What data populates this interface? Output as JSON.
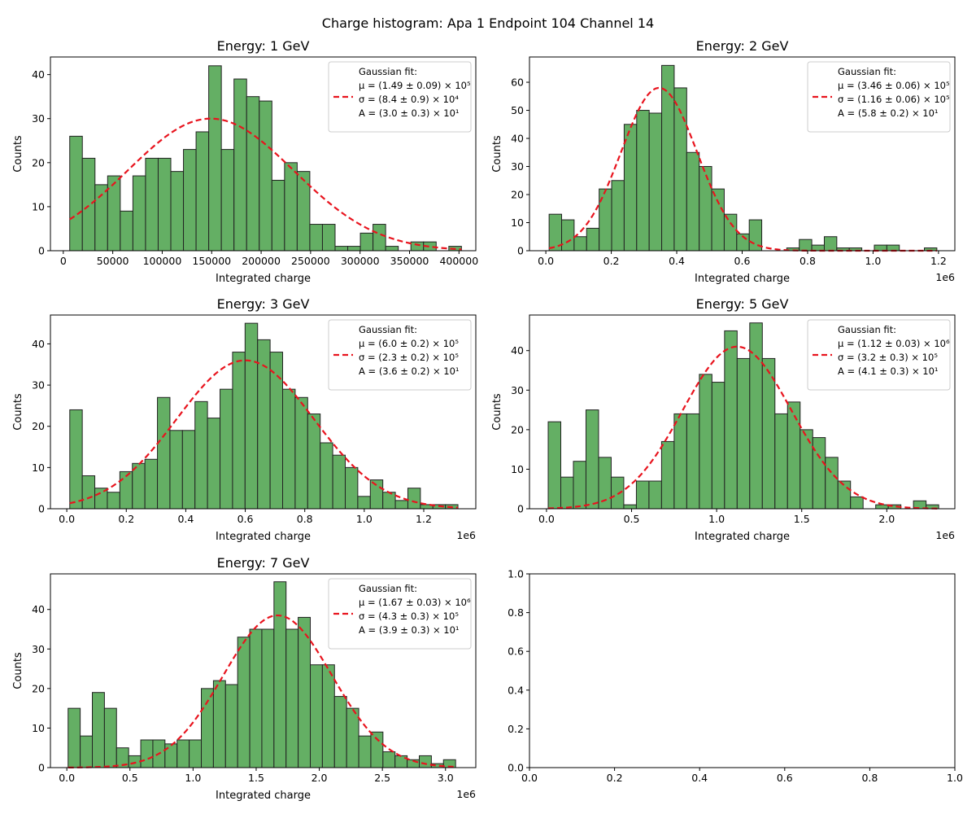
{
  "figure": {
    "suptitle": "Charge histogram: Apa 1 Endpoint 104 Channel 14"
  },
  "colors": {
    "bar_fill": "#64af64",
    "bar_edge": "#222222",
    "fit_line": "#e8141e"
  },
  "chart_data": [
    {
      "type": "bar",
      "title": "Energy: 1 GeV",
      "xlabel": "Integrated charge",
      "ylabel": "Counts",
      "x_offset_label": "",
      "xlim": [
        -13000,
        417000
      ],
      "ylim": [
        0,
        44
      ],
      "xticks": [
        0,
        50000,
        100000,
        150000,
        200000,
        250000,
        300000,
        350000,
        400000
      ],
      "xtick_labels": [
        "0",
        "50000",
        "100000",
        "150000",
        "200000",
        "250000",
        "300000",
        "350000",
        "400000"
      ],
      "yticks": [
        0,
        10,
        20,
        30,
        40
      ],
      "ytick_labels": [
        "0",
        "10",
        "20",
        "30",
        "40"
      ],
      "bin_range": [
        6500,
        402500
      ],
      "counts": [
        26,
        21,
        15,
        17,
        9,
        17,
        21,
        21,
        18,
        23,
        27,
        42,
        23,
        39,
        35,
        34,
        16,
        20,
        18,
        6,
        6,
        1,
        1,
        4,
        6,
        1,
        0,
        2,
        2,
        0,
        1
      ],
      "fit": {
        "mu": 149000,
        "sigma": 84000,
        "A": 30
      },
      "legend": {
        "position": "upper-right",
        "title": "Gaussian fit:",
        "lines": [
          "μ = (1.49 ± 0.09) × 10⁵",
          "σ = (8.4 ± 0.9) × 10⁴",
          "A = (3.0 ± 0.3) × 10¹"
        ]
      }
    },
    {
      "type": "bar",
      "title": "Energy: 2 GeV",
      "xlabel": "Integrated charge",
      "ylabel": "Counts",
      "x_offset_label": "1e6",
      "xlim": [
        -0.05,
        1.25
      ],
      "ylim": [
        0,
        69
      ],
      "xticks": [
        0,
        0.2,
        0.4,
        0.6,
        0.8,
        1.0,
        1.2
      ],
      "xtick_labels": [
        "0.0",
        "0.2",
        "0.4",
        "0.6",
        "0.8",
        "1.0",
        "1.2"
      ],
      "yticks": [
        0,
        10,
        20,
        30,
        40,
        50,
        60
      ],
      "ytick_labels": [
        "0",
        "10",
        "20",
        "30",
        "40",
        "50",
        "60"
      ],
      "bin_range": [
        0.01,
        1.195
      ],
      "counts": [
        13,
        11,
        5,
        8,
        22,
        25,
        45,
        50,
        49,
        66,
        58,
        35,
        30,
        22,
        13,
        6,
        11,
        0,
        0,
        1,
        4,
        2,
        5,
        1,
        1,
        0,
        2,
        2,
        0,
        0,
        1
      ],
      "fit": {
        "mu": 0.346,
        "sigma": 0.116,
        "A": 58
      },
      "legend": {
        "position": "upper-right",
        "title": "Gaussian fit:",
        "lines": [
          "μ = (3.46 ± 0.06) × 10⁵",
          "σ = (1.16 ± 0.06) × 10⁵",
          "A = (5.8 ± 0.2) × 10¹"
        ]
      }
    },
    {
      "type": "bar",
      "title": "Energy: 3 GeV",
      "xlabel": "Integrated charge",
      "ylabel": "Counts",
      "x_offset_label": "1e6",
      "xlim": [
        -0.055,
        1.375
      ],
      "ylim": [
        0,
        47
      ],
      "xticks": [
        0,
        0.2,
        0.4,
        0.6,
        0.8,
        1.0,
        1.2
      ],
      "xtick_labels": [
        "0.0",
        "0.2",
        "0.4",
        "0.6",
        "0.8",
        "1.0",
        "1.2"
      ],
      "yticks": [
        0,
        10,
        20,
        30,
        40
      ],
      "ytick_labels": [
        "0",
        "10",
        "20",
        "30",
        "40"
      ],
      "bin_range": [
        0.01,
        1.315
      ],
      "counts": [
        24,
        8,
        5,
        4,
        9,
        11,
        12,
        27,
        19,
        19,
        26,
        22,
        29,
        38,
        45,
        41,
        38,
        29,
        27,
        23,
        16,
        13,
        10,
        3,
        7,
        4,
        2,
        5,
        1,
        1,
        1
      ],
      "fit": {
        "mu": 0.6,
        "sigma": 0.23,
        "A": 36
      },
      "legend": {
        "position": "upper-right",
        "title": "Gaussian fit:",
        "lines": [
          "μ = (6.0 ± 0.2) × 10⁵",
          "σ = (2.3 ± 0.2) × 10⁵",
          "A = (3.6 ± 0.2) × 10¹"
        ]
      }
    },
    {
      "type": "bar",
      "title": "Energy: 5 GeV",
      "xlabel": "Integrated charge",
      "ylabel": "Counts",
      "x_offset_label": "1e6",
      "xlim": [
        -0.1,
        2.4
      ],
      "ylim": [
        0,
        49
      ],
      "xticks": [
        0,
        0.5,
        1.0,
        1.5,
        2.0
      ],
      "xtick_labels": [
        "0.0",
        "0.5",
        "1.0",
        "1.5",
        "2.0"
      ],
      "yticks": [
        0,
        10,
        20,
        30,
        40
      ],
      "ytick_labels": [
        "0",
        "10",
        "20",
        "30",
        "40"
      ],
      "bin_range": [
        0.01,
        2.305
      ],
      "counts": [
        22,
        8,
        12,
        25,
        13,
        8,
        1,
        7,
        7,
        17,
        24,
        24,
        34,
        32,
        45,
        38,
        47,
        38,
        24,
        27,
        20,
        18,
        13,
        7,
        3,
        0,
        1,
        1,
        0,
        2,
        1
      ],
      "fit": {
        "mu": 1.12,
        "sigma": 0.32,
        "A": 41
      },
      "legend": {
        "position": "upper-right",
        "title": "Gaussian fit:",
        "lines": [
          "μ = (1.12 ± 0.03) × 10⁶",
          "σ = (3.2 ± 0.3) × 10⁵",
          "A = (4.1 ± 0.3) × 10¹"
        ]
      }
    },
    {
      "type": "bar",
      "title": "Energy: 7 GeV",
      "xlabel": "Integrated charge",
      "ylabel": "Counts",
      "x_offset_label": "1e6",
      "xlim": [
        -0.13,
        3.24
      ],
      "ylim": [
        0,
        49
      ],
      "xticks": [
        0,
        0.5,
        1.0,
        1.5,
        2.0,
        2.5,
        3.0
      ],
      "xtick_labels": [
        "0.0",
        "0.5",
        "1.0",
        "1.5",
        "2.0",
        "2.5",
        "3.0"
      ],
      "yticks": [
        0,
        10,
        20,
        30,
        40
      ],
      "ytick_labels": [
        "0",
        "10",
        "20",
        "30",
        "40"
      ],
      "bin_range": [
        0.01,
        3.08
      ],
      "counts": [
        15,
        8,
        19,
        15,
        5,
        3,
        7,
        7,
        6,
        7,
        7,
        20,
        22,
        21,
        33,
        35,
        35,
        47,
        35,
        38,
        26,
        26,
        18,
        15,
        8,
        9,
        4,
        3,
        2,
        3,
        1,
        2
      ],
      "fit": {
        "mu": 1.67,
        "sigma": 0.43,
        "A": 38.5
      },
      "legend": {
        "position": "upper-right",
        "title": "Gaussian fit:",
        "lines": [
          "μ = (1.67 ± 0.03) × 10⁶",
          "σ = (4.3 ± 0.3) × 10⁵",
          "A = (3.9 ± 0.3) × 10¹"
        ]
      }
    },
    {
      "type": "bar",
      "title": "",
      "xlabel": "",
      "ylabel": "",
      "x_offset_label": "",
      "xlim": [
        0,
        1
      ],
      "ylim": [
        0,
        1
      ],
      "xticks": [
        0,
        0.2,
        0.4,
        0.6,
        0.8,
        1.0
      ],
      "xtick_labels": [
        "0.0",
        "0.2",
        "0.4",
        "0.6",
        "0.8",
        "1.0"
      ],
      "yticks": [
        0,
        0.2,
        0.4,
        0.6,
        0.8,
        1.0
      ],
      "ytick_labels": [
        "0.0",
        "0.2",
        "0.4",
        "0.6",
        "0.8",
        "1.0"
      ],
      "bin_range": [
        0,
        1
      ],
      "counts": [],
      "fit": null,
      "legend": null
    }
  ]
}
